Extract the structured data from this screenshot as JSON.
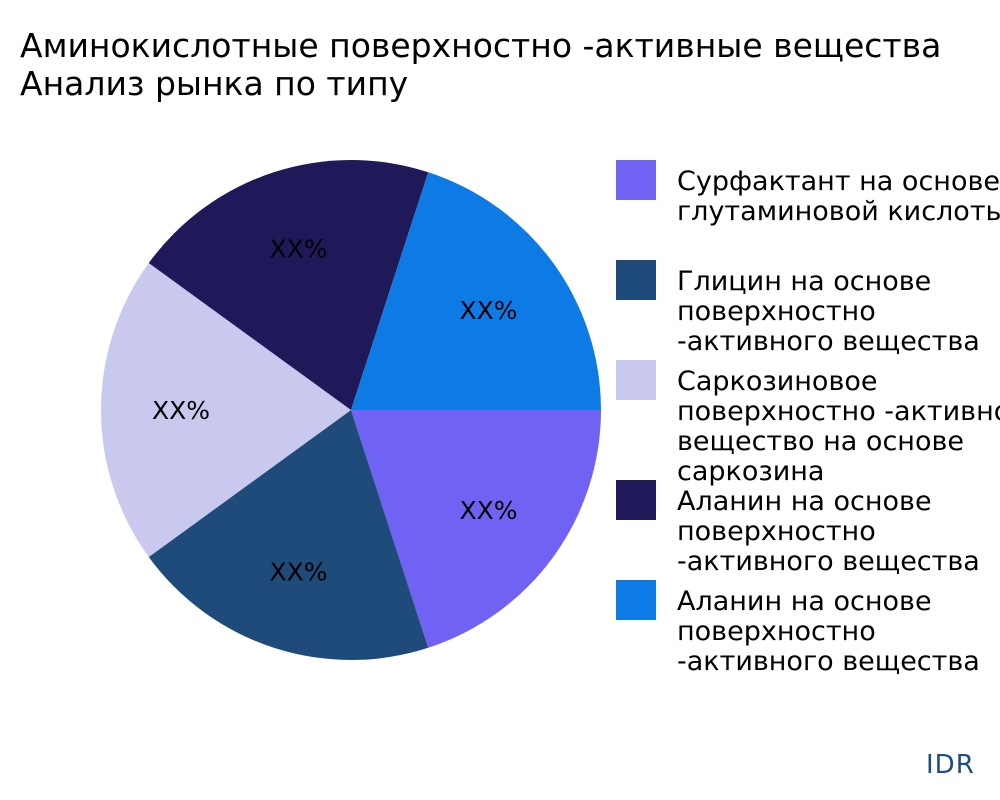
{
  "chart_data": {
    "type": "pie",
    "title_lines": [
      "Аминокислотные поверхностно -активные вещества",
      "Анализ рынка по типу"
    ],
    "slices": [
      {
        "legend_lines": [
          "Сурфактант на основе",
          "глутаминовой кислоты"
        ],
        "value": 20,
        "label": "XX%",
        "color": "#7062f3"
      },
      {
        "legend_lines": [
          "Глицин на основе",
          "поверхностно",
          "-активного вещества"
        ],
        "value": 20,
        "label": "XX%",
        "color": "#1f4b7b"
      },
      {
        "legend_lines": [
          "Саркозиновое",
          "поверхностно -активное",
          "вещество на основе",
          "саркозина"
        ],
        "value": 20,
        "label": "XX%",
        "color": "#c9c8ef"
      },
      {
        "legend_lines": [
          "Аланин на основе",
          "поверхностно",
          "-активного вещества"
        ],
        "value": 20,
        "label": "XX%",
        "color": "#1f1859"
      },
      {
        "legend_lines": [
          "Аланин на основе",
          "поверхностно",
          "-активного вещества"
        ],
        "value": 20,
        "label": "XX%",
        "color": "#0d7ae6"
      }
    ],
    "legend_position": "right"
  },
  "watermark": "IDR"
}
